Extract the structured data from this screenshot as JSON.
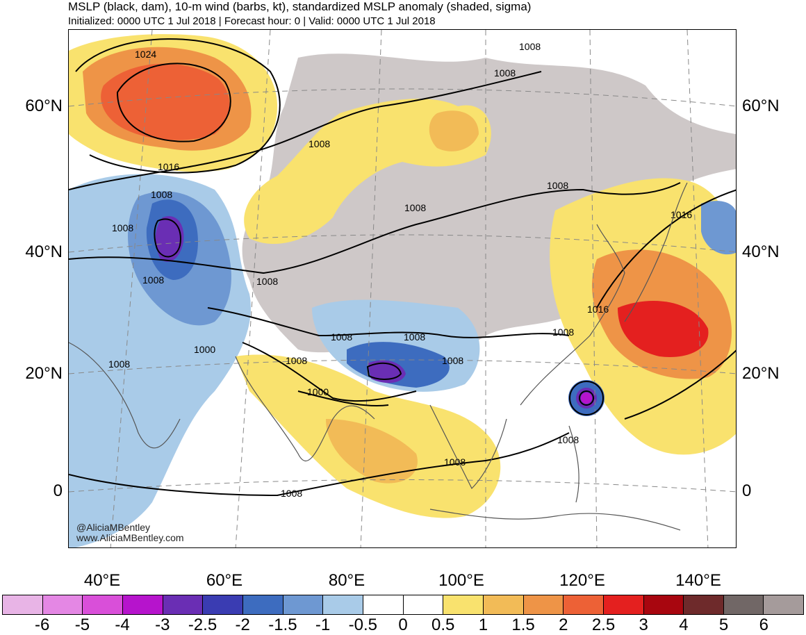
{
  "header": {
    "title": "MSLP (black, dam), 10-m wind (barbs, kt), standardized MSLP anomaly (shaded, sigma)",
    "subtitle": "Initialized: 0000 UTC 1 Jul 2018 | Forecast hour: 0 | Valid: 0000 UTC 1 Jul 2018"
  },
  "axes": {
    "lat_labels": [
      "60°N",
      "40°N",
      "20°N",
      "0"
    ],
    "lon_labels": [
      "40°E",
      "60°E",
      "80°E",
      "100°E",
      "120°E",
      "140°E"
    ]
  },
  "isobar_labels": [
    "1024",
    "1016",
    "1008",
    "1008",
    "1008",
    "1008",
    "1008",
    "1008",
    "1008",
    "1008",
    "1008",
    "1000",
    "1008",
    "1008",
    "1008",
    "1008",
    "1000",
    "1008",
    "1008",
    "1008",
    "1016",
    "1008",
    "1016",
    "1008"
  ],
  "credit": {
    "line1": "@AliciaMBentley",
    "line2": "www.AliciaMBentley.com"
  },
  "colorbar": {
    "colors": [
      "#e8b4e6",
      "#e487e4",
      "#d94fd9",
      "#b614cc",
      "#6a2eb4",
      "#3a3cb2",
      "#3d6cbf",
      "#6e98d2",
      "#a9cbe8",
      "#ffffff",
      "#ffffff",
      "#f9e26e",
      "#f2bb57",
      "#ee9447",
      "#ed6136",
      "#e4201f",
      "#a8060f",
      "#6e2a2b",
      "#716766",
      "#a59b9b"
    ],
    "ticks": [
      "-6",
      "-5",
      "-4",
      "-3",
      "-2.5",
      "-2",
      "-1.5",
      "-1",
      "-0.5",
      "0",
      "0.5",
      "1",
      "1.5",
      "2",
      "2.5",
      "3",
      "4",
      "5",
      "6"
    ]
  }
}
